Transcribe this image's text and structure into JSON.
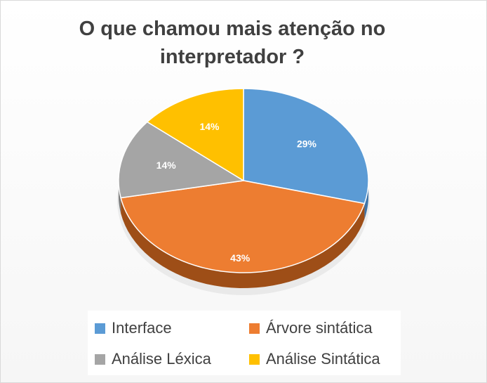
{
  "chart_data": {
    "type": "pie",
    "title": "O que chamou mais atenção no interpretador ?",
    "slices": [
      {
        "label": "Interface",
        "value": 29,
        "display": "29%",
        "color": "#5B9BD5",
        "side_color": "#3E74A8"
      },
      {
        "label": "Árvore sintática",
        "value": 43,
        "display": "43%",
        "color": "#ED7D31",
        "side_color": "#9E4E17"
      },
      {
        "label": "Análise Léxica",
        "value": 14,
        "display": "14%",
        "color": "#A5A5A5",
        "side_color": "#7A7A7A"
      },
      {
        "label": "Análise Sintática",
        "value": 14,
        "display": "14%",
        "color": "#FFC000",
        "side_color": "#BF9000"
      }
    ],
    "legend_position": "bottom"
  }
}
